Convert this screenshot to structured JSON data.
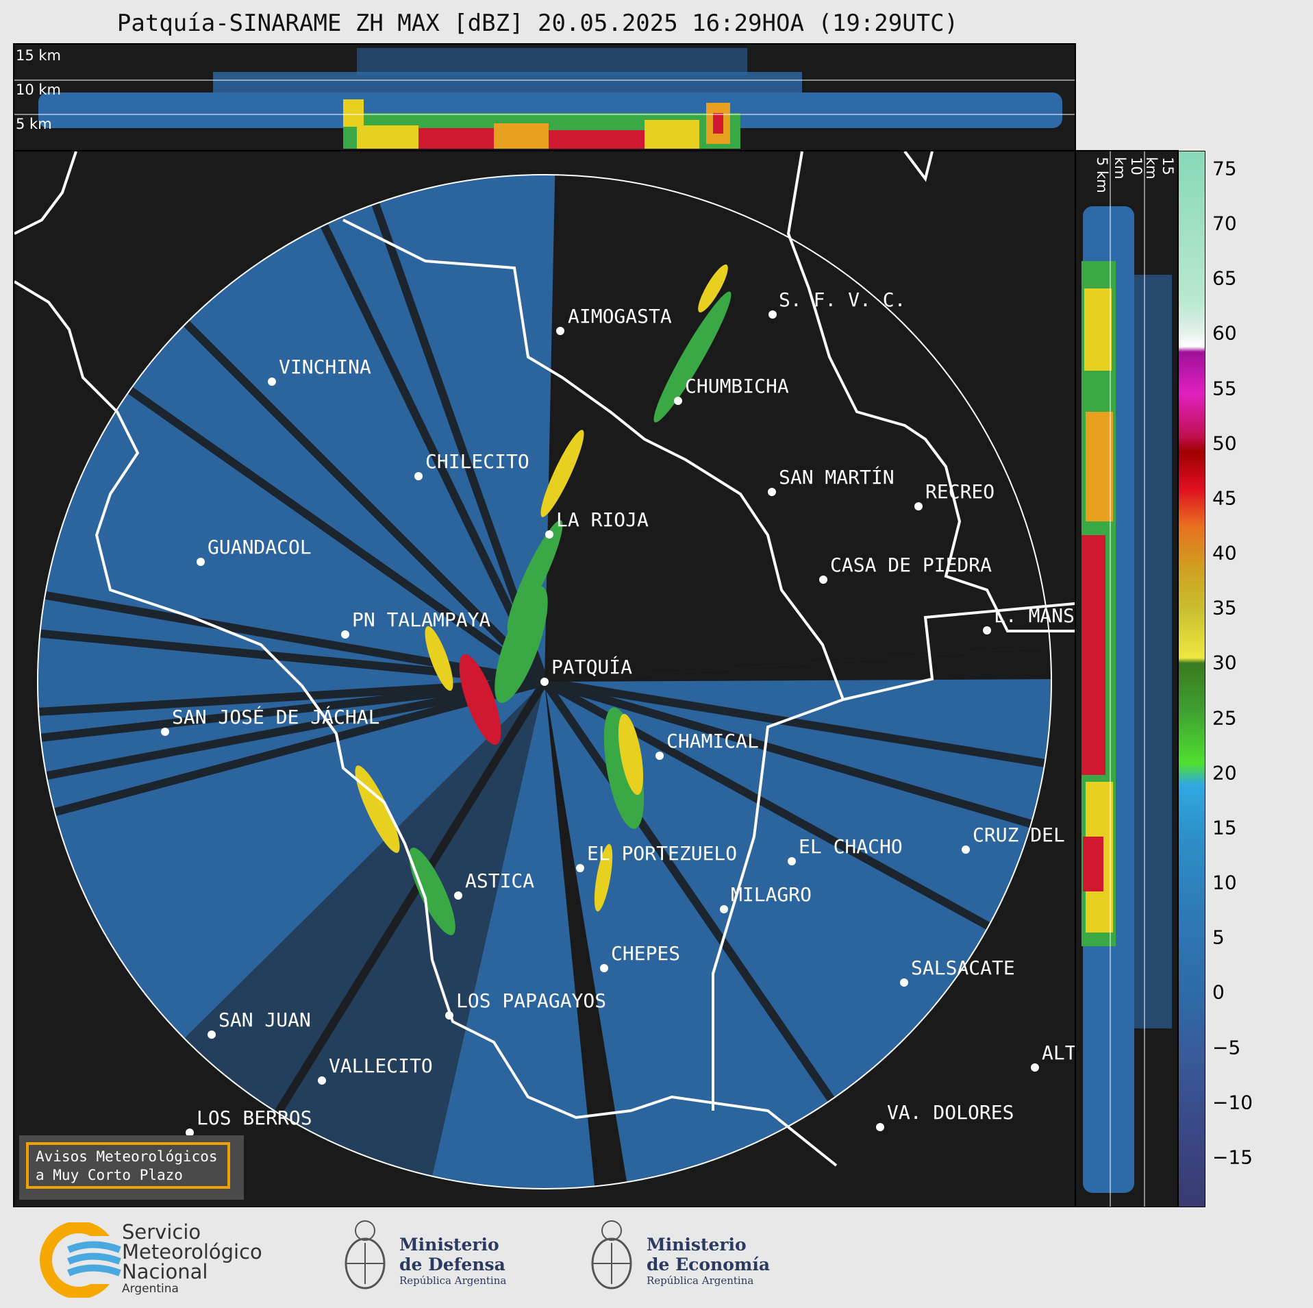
{
  "title": "Patquía-SINARAME ZH MAX [dBZ] 20.05.2025 16:29HOA (19:29UTC)",
  "top_altitude_labels": [
    "15 km",
    "10 km",
    "5 km"
  ],
  "side_altitude_labels": [
    "5 km",
    "10 km",
    "15 km"
  ],
  "colorbar": {
    "ticks": [
      "75",
      "70",
      "65",
      "60",
      "55",
      "50",
      "45",
      "40",
      "35",
      "30",
      "25",
      "20",
      "15",
      "10",
      "5",
      "0",
      "−5",
      "−10",
      "−15"
    ]
  },
  "cities": [
    {
      "name": "AIMOGASTA"
    },
    {
      "name": "S. F. V. C."
    },
    {
      "name": "VINCHINA"
    },
    {
      "name": "CHUMBICHA"
    },
    {
      "name": "CHILECITO"
    },
    {
      "name": "SAN MARTÍN"
    },
    {
      "name": "RECREO"
    },
    {
      "name": "LA RIOJA"
    },
    {
      "name": "GUANDACOL"
    },
    {
      "name": "CASA DE PIEDRA"
    },
    {
      "name": "L. MANS"
    },
    {
      "name": "PN TALAMPAYA"
    },
    {
      "name": "PATQUÍA"
    },
    {
      "name": "SAN JOSÉ DE JÁCHAL"
    },
    {
      "name": "CHAMICAL"
    },
    {
      "name": "EL CHACHO"
    },
    {
      "name": "CRUZ DEL"
    },
    {
      "name": "EL PORTEZUELO"
    },
    {
      "name": "ASTICA"
    },
    {
      "name": "MILAGRO"
    },
    {
      "name": "CHEPES"
    },
    {
      "name": "SALSACATE"
    },
    {
      "name": "LOS PAPAGAYOS"
    },
    {
      "name": "SAN JUAN"
    },
    {
      "name": "ALT"
    },
    {
      "name": "VALLECITO"
    },
    {
      "name": "VA. DOLORES"
    },
    {
      "name": "LOS BERROS"
    }
  ],
  "notice": {
    "line1": "Avisos Meteorológicos",
    "line2": "a Muy Corto Plazo"
  },
  "logos": {
    "smn": {
      "line1": "Servicio",
      "line2": "Meteorológico",
      "line3": "Nacional",
      "line4": "Argentina"
    },
    "defensa": {
      "line1": "Ministerio",
      "line2": "de Defensa",
      "line3": "República Argentina"
    },
    "economia": {
      "line1": "Ministerio",
      "line2": "de Economía",
      "line3": "República Argentina"
    }
  },
  "colors": {
    "background": "#1a1a1a",
    "echo_base": "#2e6aa8",
    "border": "#ffffff",
    "notice_border": "#f0a000"
  }
}
